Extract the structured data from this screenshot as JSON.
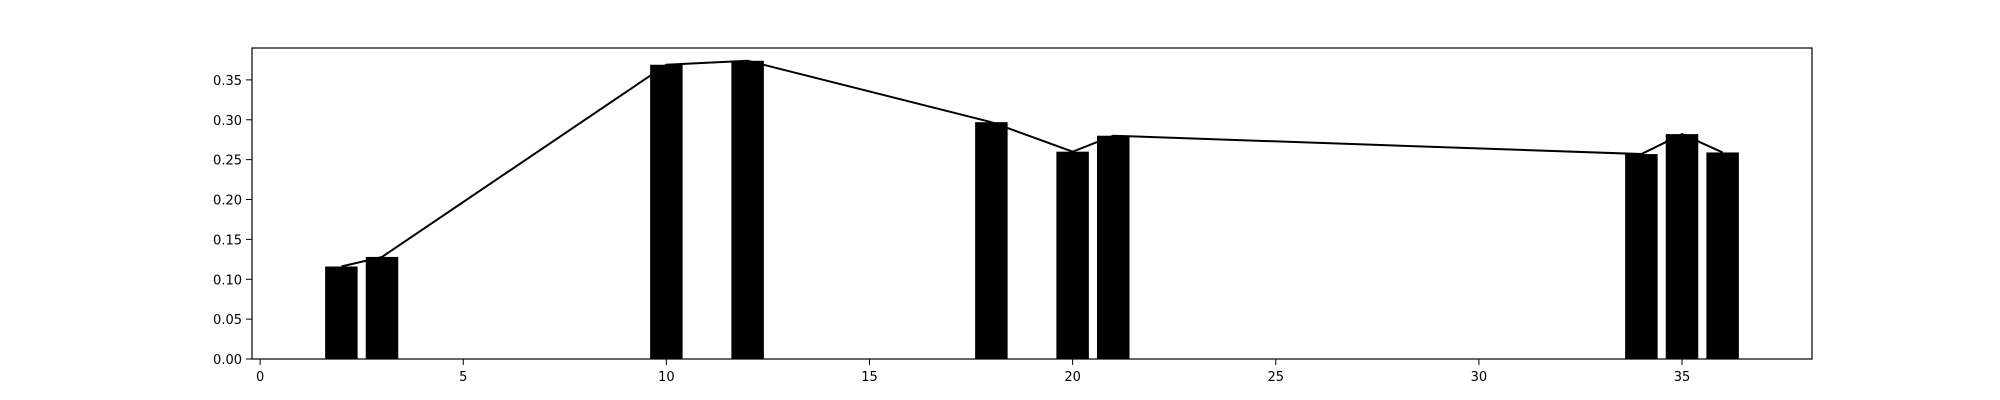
{
  "chart_data": {
    "type": "bar",
    "title": "",
    "xlabel": "",
    "ylabel": "",
    "xlim": [
      -0.2,
      38.2
    ],
    "ylim": [
      0,
      0.39
    ],
    "grid": false,
    "bar_width": 0.8,
    "x": [
      2,
      3,
      10,
      12,
      18,
      20,
      21,
      34,
      35,
      36
    ],
    "values": [
      0.116,
      0.128,
      0.369,
      0.374,
      0.297,
      0.26,
      0.28,
      0.257,
      0.282,
      0.259
    ],
    "xticks": [
      0,
      5,
      10,
      15,
      20,
      25,
      30,
      35
    ],
    "xtick_labels": [
      "0",
      "5",
      "10",
      "15",
      "20",
      "25",
      "30",
      "35"
    ],
    "yticks": [
      0,
      0.05,
      0.1,
      0.15,
      0.2,
      0.25,
      0.3,
      0.35
    ],
    "ytick_labels": [
      "0.00",
      "0.05",
      "0.10",
      "0.15",
      "0.20",
      "0.25",
      "0.30",
      "0.35"
    ],
    "bar_color": "#000000",
    "line_color": "#000000",
    "overlay_line": true
  }
}
